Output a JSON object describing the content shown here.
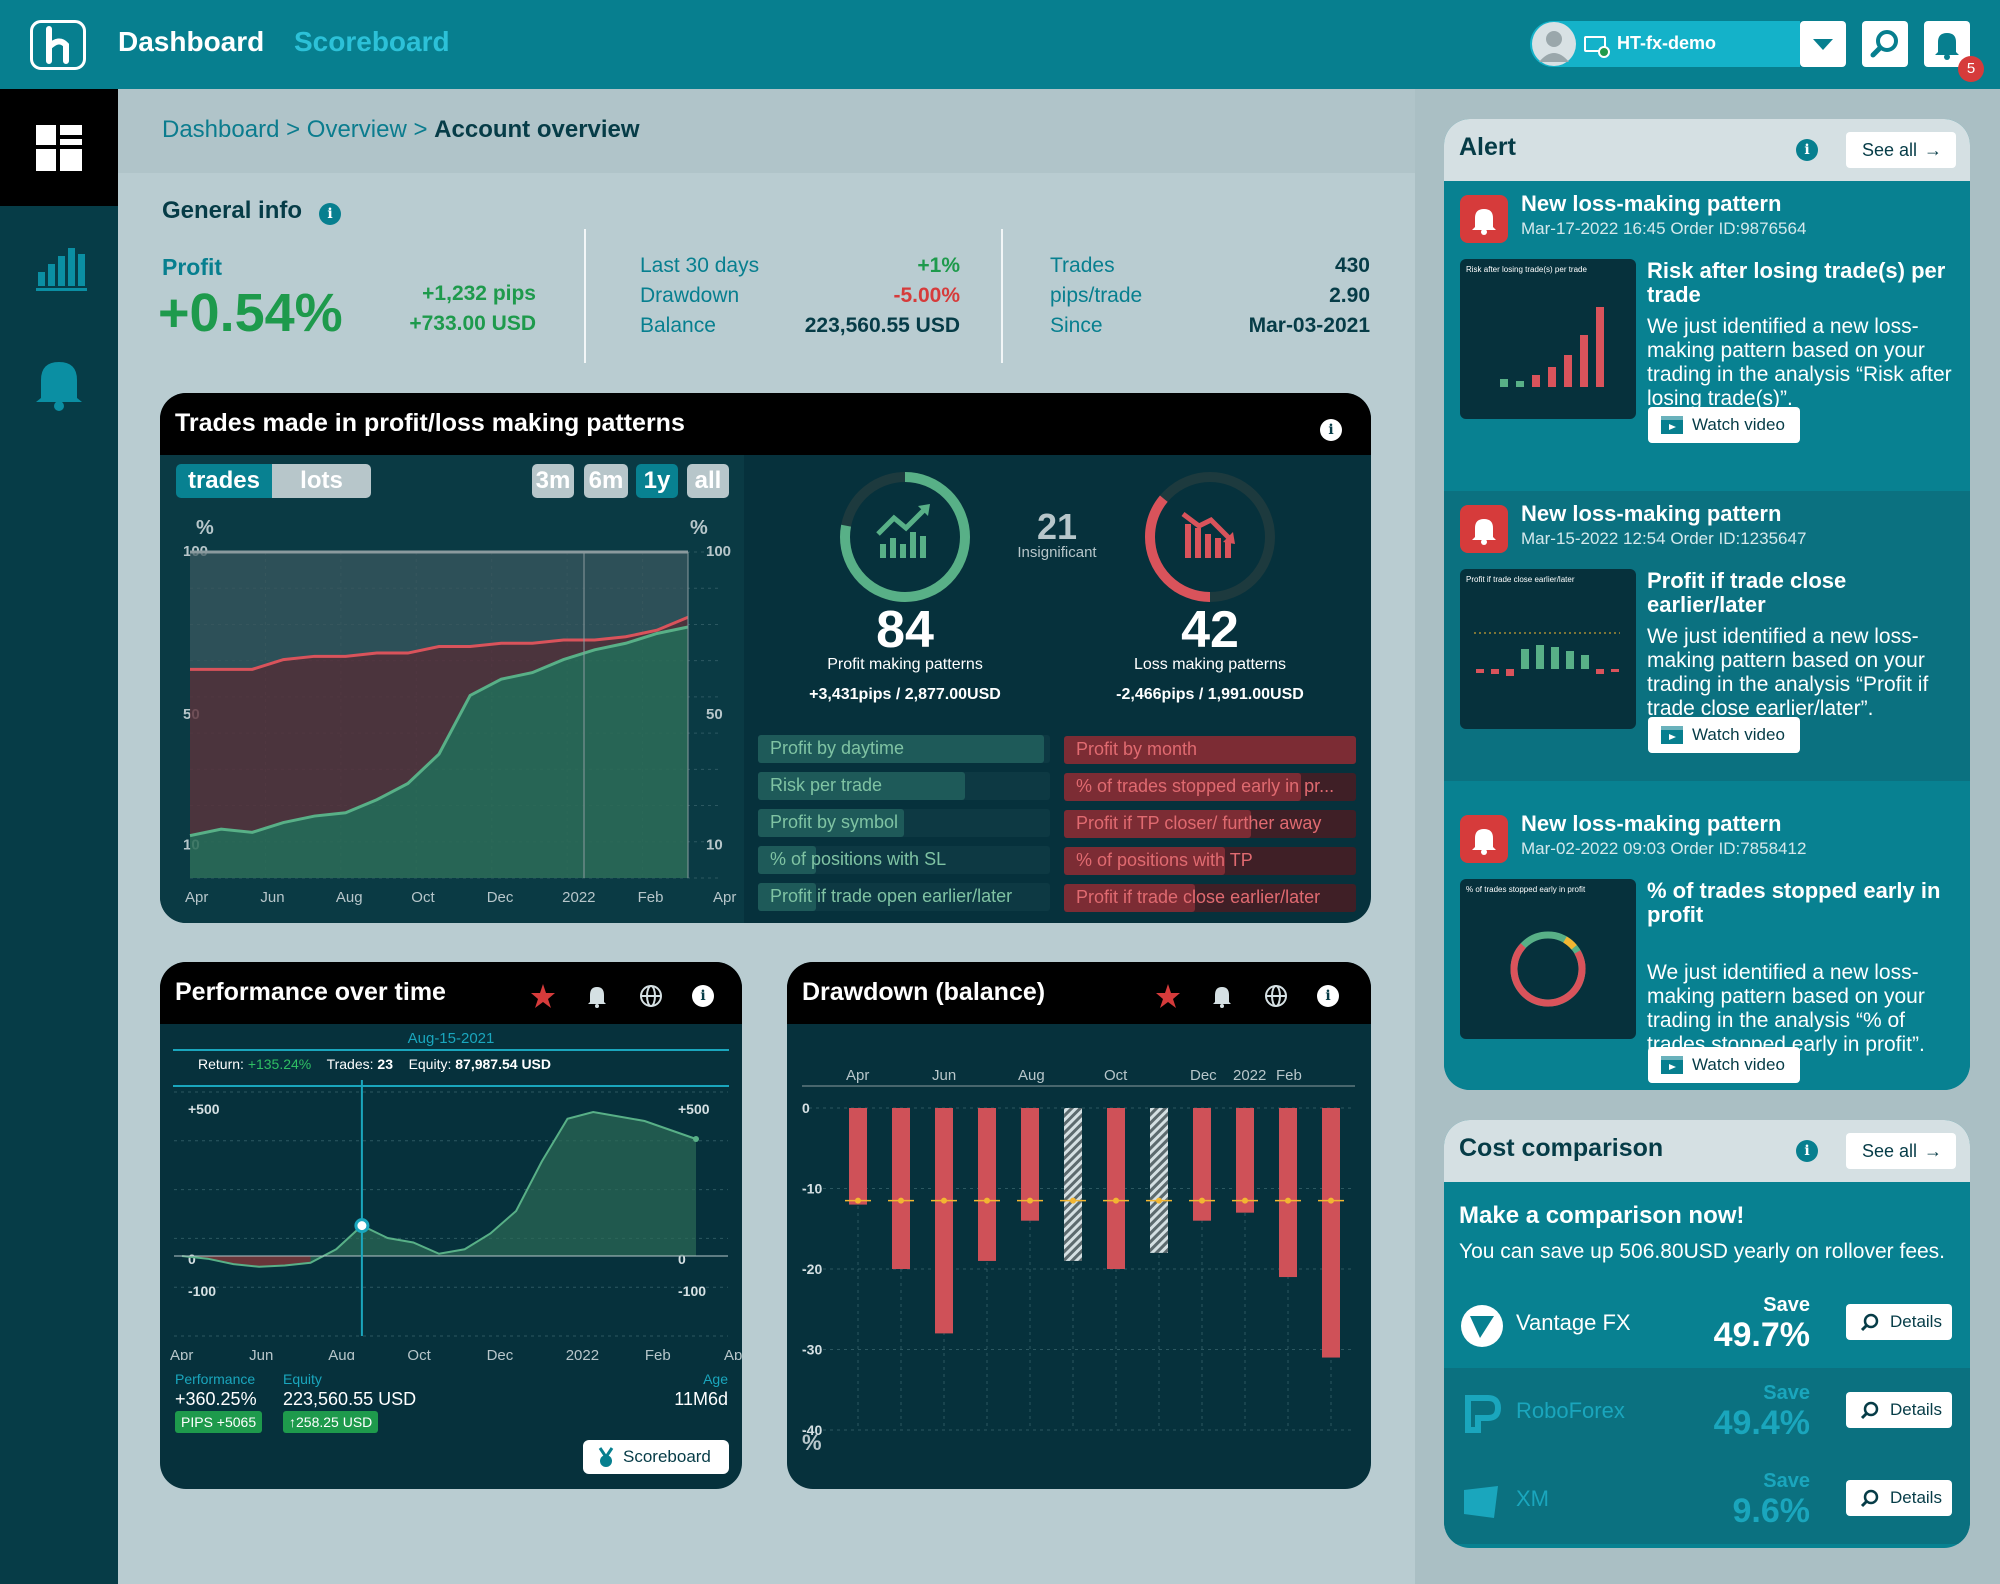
{
  "topbar": {
    "nav": {
      "dashboard": "Dashboard",
      "scoreboard": "Scoreboard"
    },
    "user": "HT-fx-demo",
    "notification_count": "5"
  },
  "breadcrumb": {
    "items": [
      "Dashboard",
      "Overview"
    ],
    "sep": ">",
    "current": "Account overview"
  },
  "general": {
    "title": "General info",
    "profit_label": "Profit",
    "profit_value": "+0.54%",
    "pips": "+1,232 pips",
    "usd": "+733.00 USD",
    "stats1": [
      {
        "label": "Last 30 days",
        "value": "+1%",
        "color": "#1e9a4c"
      },
      {
        "label": "Drawdown",
        "value": "-5.00%",
        "color": "#d63b3b"
      },
      {
        "label": "Balance",
        "value": "223,560.55 USD",
        "color": "#063c47"
      }
    ],
    "stats2": [
      {
        "label": "Trades",
        "value": "430"
      },
      {
        "label": "pips/trade",
        "value": "2.90"
      },
      {
        "label": "Since",
        "value": "Mar-03-2021"
      }
    ]
  },
  "patterns": {
    "title": "Trades made in profit/loss making patterns",
    "toggle": [
      "trades",
      "lots"
    ],
    "ranges": [
      "3m",
      "6m",
      "1y",
      "all"
    ],
    "active_range": "1y",
    "y_unit": "%",
    "profit_count": "84",
    "profit_label": "Profit making patterns",
    "profit_detail": "+3,431pips / 2,877.00USD",
    "loss_count": "42",
    "loss_label": "Loss making patterns",
    "loss_detail": "-2,466pips / 1,991.00USD",
    "insig_count": "21",
    "insig_label": "Insignificant",
    "profit_ring": 0.78,
    "loss_ring": 0.36,
    "profit_items": [
      {
        "label": "Profit by daytime",
        "fill": 0.98
      },
      {
        "label": "Risk per trade",
        "fill": 0.71
      },
      {
        "label": "Profit by symbol",
        "fill": 0.5
      },
      {
        "label": "% of positions with SL",
        "fill": 0.2
      },
      {
        "label": "Profit if trade open earlier/later",
        "fill": 0.2
      }
    ],
    "loss_items": [
      {
        "label": "Profit by month",
        "fill": 1.0
      },
      {
        "label": "% of trades stopped early in pr...",
        "fill": 0.81
      },
      {
        "label": "Profit if TP closer/ further away",
        "fill": 0.64
      },
      {
        "label": "% of positions with TP",
        "fill": 0.55
      },
      {
        "label": "Profit if trade close earlier/later",
        "fill": 0.45
      }
    ]
  },
  "performance": {
    "title": "Performance over time",
    "tooltip_date": "Aug-15-2021",
    "return_label": "Return:",
    "return_value": "+135.24%",
    "trades_label": "Trades:",
    "trades_value": "23",
    "equity_label": "Equity:",
    "equity_value": "87,987.54 USD",
    "perf_label": "Performance",
    "perf_value": "+360.25%",
    "perf_badge": "PIPS +5065",
    "equity2_label": "Equity",
    "equity2_value": "223,560.55 USD",
    "equity_badge": "258.25 USD",
    "age_label": "Age",
    "age_value": "11M6d",
    "scoreboard_btn": "Scoreboard"
  },
  "drawdown": {
    "title": "Drawdown (balance)",
    "y_unit": "%"
  },
  "alerts": {
    "title": "Alert",
    "see_all": "See all",
    "items": [
      {
        "title": "New loss-making pattern",
        "meta": "Mar-17-2022 16:45  Order ID:9876564",
        "head": "Risk after losing trade(s) per trade",
        "text": "We just identified a new loss-making pattern based on your trading in the analysis “Risk after losing trade(s)”.",
        "thumb_title": "Risk after losing trade(s) per trade",
        "watch": "Watch video"
      },
      {
        "title": "New loss-making pattern",
        "meta": "Mar-15-2022 12:54  Order ID:1235647",
        "head": "Profit if trade close earlier/later",
        "text": "We just identified a new loss-making pattern based on your trading in the analysis “Profit if trade close earlier/later”.",
        "thumb_title": "Profit if trade close earlier/later",
        "watch": "Watch video"
      },
      {
        "title": "New loss-making pattern",
        "meta": "Mar-02-2022 09:03  Order ID:7858412",
        "head": "% of trades stopped early in profit",
        "text": "We just identified a new loss-making pattern based on your trading in the analysis “% of trades stopped early in profit”.",
        "thumb_title": "% of trades stopped early in profit",
        "watch": "Watch video"
      }
    ]
  },
  "cost": {
    "title": "Cost comparison",
    "see_all": "See all",
    "headline": "Make a comparison now!",
    "sub": "You can save up 506.80USD yearly on rollover fees.",
    "brokers": [
      {
        "name": "Vantage FX",
        "save_label": "Save",
        "save": "49.7%",
        "details": "Details"
      },
      {
        "name": "RoboForex",
        "save_label": "Save",
        "save": "49.4%",
        "details": "Details"
      },
      {
        "name": "XM",
        "save_label": "Save",
        "save": "9.6%",
        "details": "Details"
      }
    ]
  },
  "chart_data": [
    {
      "type": "area",
      "title": "",
      "x_ticks": [
        "Apr",
        "Jun",
        "Aug",
        "Oct",
        "Dec",
        "2022",
        "Feb",
        "Apr"
      ],
      "y_ticks": [
        10,
        50,
        100
      ],
      "ylabel": "%",
      "series": [
        {
          "values": [
            13,
            15,
            14,
            17,
            19,
            20,
            24,
            29,
            38,
            56,
            61,
            63,
            67,
            70,
            72,
            75,
            77
          ]
        },
        {
          "values": [
            64,
            64,
            64,
            67,
            68,
            68,
            69,
            69,
            71,
            71,
            72,
            72,
            73,
            73,
            74,
            76,
            80
          ]
        }
      ]
    },
    {
      "type": "area",
      "title": "",
      "x_ticks": [
        "Apr",
        "Jun",
        "Aug",
        "Oct",
        "Dec",
        "2022",
        "Feb",
        "Apr"
      ],
      "y_ticks": [
        "+500",
        "0",
        "-100"
      ],
      "series": [
        {
          "values": [
            0,
            -20,
            -60,
            -80,
            -70,
            -50,
            30,
            135,
            80,
            60,
            10,
            30,
            100,
            200,
            420,
            610,
            640,
            620,
            600,
            560,
            520
          ]
        }
      ]
    },
    {
      "type": "bar",
      "title": "",
      "x_ticks": [
        "Apr",
        "Jun",
        "Aug",
        "Oct",
        "Dec",
        "2022",
        "Feb"
      ],
      "y_ticks": [
        0,
        -10,
        -20,
        -30,
        -40
      ],
      "ylabel": "%",
      "values": [
        -12,
        -20,
        -28,
        -19,
        -14,
        -19,
        -20,
        -18,
        -14,
        -13,
        -21,
        -31
      ],
      "markers": [
        -11.5,
        -11.5,
        -11.5,
        -11.5,
        -11.5,
        -11.5,
        -11.5,
        -11.5,
        -11.5,
        -11.5,
        -11.5,
        -11.5
      ],
      "hatched": [
        5,
        7
      ]
    }
  ]
}
